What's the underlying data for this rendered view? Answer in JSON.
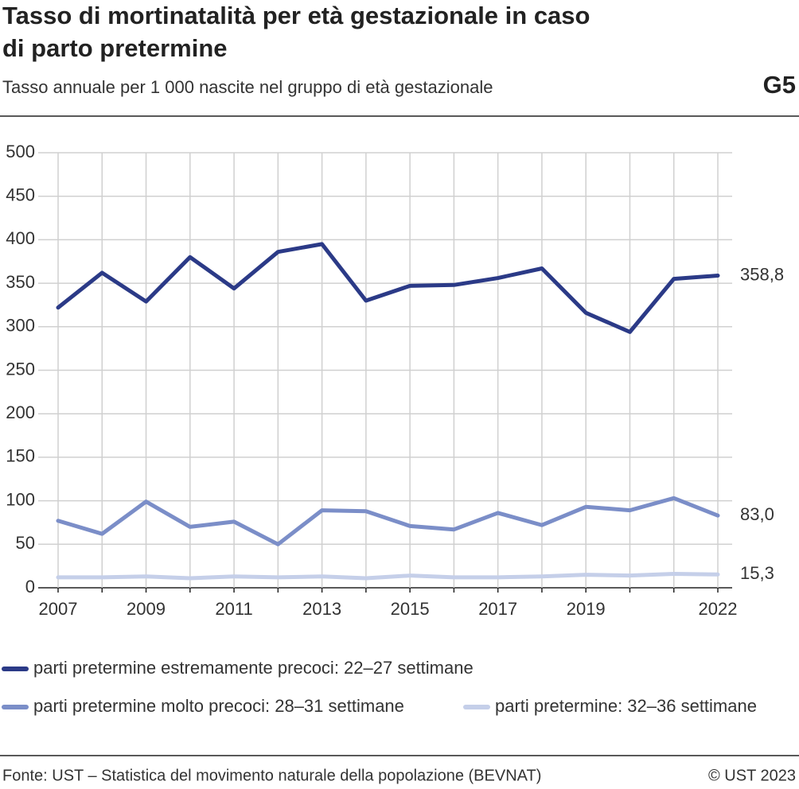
{
  "chart_data": {
    "type": "line",
    "title_lines": [
      "Tasso di mortinatalità per età gestazionale in caso",
      "di parto pretermine"
    ],
    "subtitle": "Tasso annuale per 1 000 nascite nel gruppo di età gestazionale",
    "label": "G5",
    "categories": [
      "2007",
      null,
      "2009",
      null,
      "2011",
      null,
      "2013",
      null,
      "2015",
      null,
      "2017",
      null,
      "2019",
      null,
      null,
      "2022"
    ],
    "ylim": [
      0,
      500
    ],
    "yticks": [
      0,
      50,
      100,
      150,
      200,
      250,
      300,
      350,
      400,
      450,
      500
    ],
    "grid": true,
    "series": [
      {
        "name": "parti pretermine estremamente precoci: 22–27 settimane",
        "color": "#2b3a87",
        "values": [
          322,
          362,
          329,
          380,
          344,
          386,
          395,
          330,
          347,
          348,
          356,
          367,
          316,
          294,
          355,
          358.8
        ],
        "value_labels": [
          null,
          null,
          null,
          null,
          null,
          null,
          null,
          null,
          null,
          null,
          null,
          null,
          null,
          null,
          null,
          "358,8"
        ]
      },
      {
        "name": "parti pretermine molto precoci: 28–31 settimane",
        "color": "#7b8ec8",
        "values": [
          77,
          62,
          99,
          70,
          76,
          50,
          89,
          88,
          71,
          67,
          86,
          72,
          93,
          89,
          103,
          83.0
        ],
        "value_labels": [
          null,
          null,
          null,
          null,
          null,
          null,
          null,
          null,
          null,
          null,
          null,
          null,
          null,
          null,
          null,
          "83,0"
        ]
      },
      {
        "name": "parti pretermine: 32–36 settimane",
        "color": "#c5cfe9",
        "values": [
          12,
          12,
          13,
          11,
          13,
          12,
          13,
          11,
          14,
          12,
          12,
          13,
          15,
          14,
          16,
          15.3
        ],
        "value_labels": [
          null,
          null,
          null,
          null,
          null,
          null,
          null,
          null,
          null,
          null,
          null,
          null,
          null,
          null,
          null,
          "15,3"
        ]
      }
    ],
    "source": "Fonte: UST – Statistica del movimento naturale della popolazione (BEVNAT)",
    "copyright": "© UST 2023"
  }
}
